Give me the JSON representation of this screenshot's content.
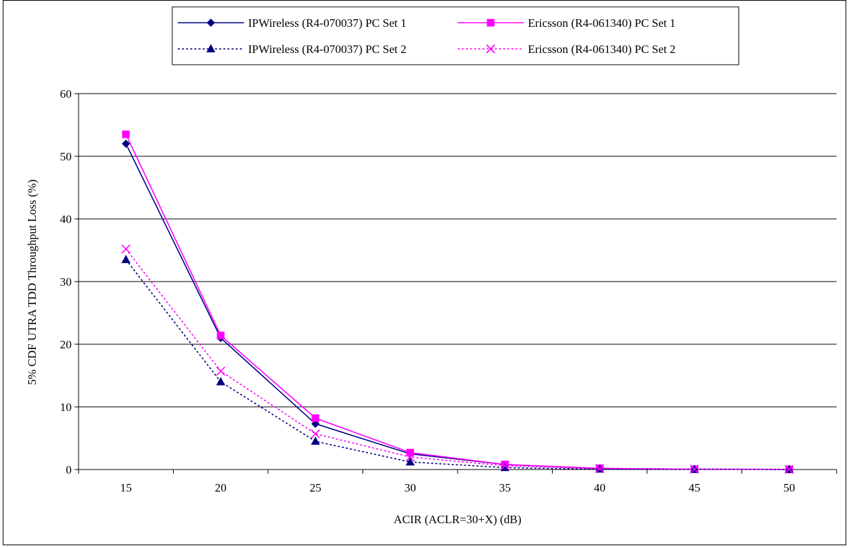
{
  "chart_data": {
    "type": "line",
    "xlabel": "ACIR (ACLR=30+X) (dB)",
    "ylabel": "5% CDF UTRA TDD Throughput Loss (%)",
    "categories": [
      "15",
      "20",
      "25",
      "30",
      "35",
      "40",
      "45",
      "50"
    ],
    "ylim": [
      0,
      60
    ],
    "yticks": [
      0,
      10,
      20,
      30,
      40,
      50,
      60
    ],
    "grid": "horizontal",
    "legend_position": "top",
    "series": [
      {
        "name": "IPWireless (R4-070037) PC Set 1",
        "color": "#000080",
        "dash": "solid",
        "marker": "diamond",
        "values": [
          52.0,
          21.0,
          7.3,
          2.5,
          0.8,
          0.15,
          0.05,
          0.02
        ]
      },
      {
        "name": "Ericsson (R4-061340) PC Set 1",
        "color": "#ff00ff",
        "dash": "solid",
        "marker": "square",
        "values": [
          53.5,
          21.4,
          8.2,
          2.7,
          0.8,
          0.2,
          0.05,
          0.02
        ]
      },
      {
        "name": "IPWireless (R4-070037) PC Set 2",
        "color": "#000080",
        "dash": "dotted",
        "marker": "triangle",
        "values": [
          33.5,
          14.0,
          4.5,
          1.2,
          0.3,
          0.05,
          0.02,
          0.01
        ]
      },
      {
        "name": "Ericsson (R4-061340) PC Set 2",
        "color": "#ff00ff",
        "dash": "dotted",
        "marker": "x",
        "values": [
          35.2,
          15.7,
          5.7,
          2.0,
          0.6,
          0.15,
          0.05,
          0.02
        ]
      }
    ]
  }
}
